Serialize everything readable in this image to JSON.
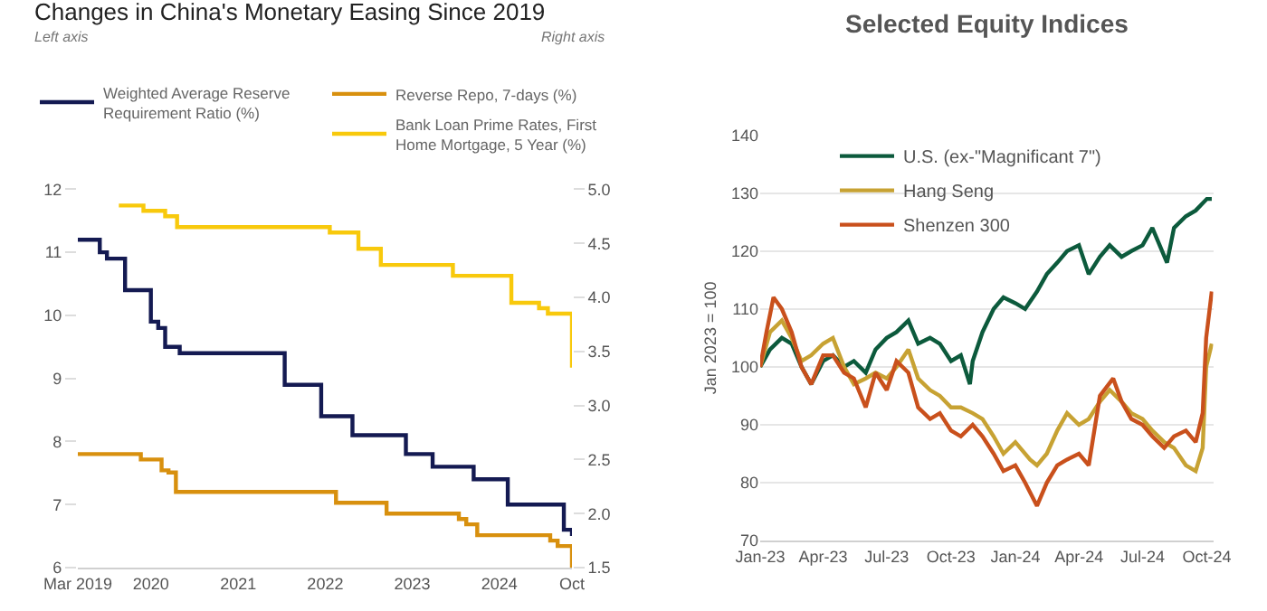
{
  "chart_data": [
    {
      "type": "step",
      "title": "Changes in China's Monetary Easing Since 2019",
      "annotations": [
        "Left axis",
        "Right axis"
      ],
      "xlim": [
        "2019-03-01",
        "2024-10-31"
      ],
      "xticks": [
        {
          "value": "2019-03-01",
          "label": "Mar 2019"
        },
        {
          "value": "2020-01-01",
          "label": "2020"
        },
        {
          "value": "2021-01-01",
          "label": "2021"
        },
        {
          "value": "2022-01-01",
          "label": "2022"
        },
        {
          "value": "2023-01-01",
          "label": "2023"
        },
        {
          "value": "2024-01-01",
          "label": "2024"
        },
        {
          "value": "2024-10-31",
          "label": "Oct"
        }
      ],
      "ylim": [
        6,
        12
      ],
      "yticks": [
        6,
        7,
        8,
        9,
        10,
        11,
        12
      ],
      "y2lim": [
        1.5,
        5.0
      ],
      "y2ticks": [
        1.5,
        {
          "value": 2,
          "label": "2.0"
        },
        2.5,
        {
          "value": 3,
          "label": "3.0"
        },
        3.5,
        {
          "value": 4,
          "label": "4.0"
        },
        4.5,
        {
          "value": 5,
          "label": "5.0"
        }
      ],
      "legend": "top",
      "grid": false,
      "series": [
        {
          "name": "Weighted Average Reserve Requirement Ratio (%)",
          "color": "#141a52",
          "x": [
            "2019-03-01",
            "2019-04-15",
            "2019-06-01",
            "2019-07-01",
            "2019-08-01",
            "2019-09-15",
            "2020-01-01",
            "2020-02-01",
            "2020-03-01",
            "2020-05-01",
            "2021-07-15",
            "2021-12-15",
            "2022-04-25",
            "2022-12-05",
            "2023-03-27",
            "2023-09-15",
            "2024-02-05",
            "2024-09-27",
            "2024-10-31"
          ],
          "values": [
            11.2,
            11.2,
            11.0,
            10.9,
            10.9,
            10.4,
            9.9,
            9.8,
            9.5,
            9.4,
            8.9,
            8.4,
            8.1,
            7.8,
            7.6,
            7.4,
            7.0,
            6.6,
            6.5
          ]
        },
        {
          "name": "Reverse Repo, 7-days (%)",
          "color": "#d8900e",
          "axis": "y2",
          "x": [
            "2019-03-01",
            "2019-10-01",
            "2019-11-20",
            "2020-01-01",
            "2020-02-15",
            "2020-03-15",
            "2020-04-15",
            "2021-12-31",
            "2022-02-15",
            "2022-08-01",
            "2022-09-15",
            "2023-06-01",
            "2023-07-15",
            "2023-08-15",
            "2023-09-30",
            "2024-07-01",
            "2024-08-01",
            "2024-09-01",
            "2024-09-27",
            "2024-10-31"
          ],
          "values": [
            2.55,
            2.55,
            2.5,
            2.5,
            2.4,
            2.38,
            2.2,
            2.2,
            2.1,
            2.1,
            2.0,
            2.0,
            1.95,
            1.9,
            1.8,
            1.8,
            1.75,
            1.7,
            1.7,
            1.5
          ]
        },
        {
          "name": "Bank Loan Prime Rates, First Home Mortgage, 5 Year (%)",
          "color": "#f8c90c",
          "axis": "y2",
          "x": [
            "2019-08-20",
            "2019-11-01",
            "2019-12-01",
            "2020-01-15",
            "2020-03-01",
            "2020-04-20",
            "2021-12-20",
            "2022-01-20",
            "2022-04-01",
            "2022-05-20",
            "2022-08-22",
            "2023-06-20",
            "2024-02-20",
            "2024-06-15",
            "2024-07-22",
            "2024-09-20",
            "2024-10-31"
          ],
          "values": [
            4.85,
            4.85,
            4.8,
            4.8,
            4.75,
            4.65,
            4.65,
            4.6,
            4.6,
            4.45,
            4.3,
            4.2,
            3.95,
            3.9,
            3.85,
            3.85,
            3.35
          ]
        }
      ]
    },
    {
      "type": "line",
      "title": "Selected Equity Indices",
      "ylabel": "Jan 2023 = 100",
      "xlim": [
        "2023-01-01",
        "2024-10-10"
      ],
      "xticks": [
        {
          "value": "2023-01-01",
          "label": "Jan-23"
        },
        {
          "value": "2023-04-01",
          "label": "Apr-23"
        },
        {
          "value": "2023-07-01",
          "label": "Jul-23"
        },
        {
          "value": "2023-10-01",
          "label": "Oct-23"
        },
        {
          "value": "2024-01-01",
          "label": "Jan-24"
        },
        {
          "value": "2024-04-01",
          "label": "Apr-24"
        },
        {
          "value": "2024-07-01",
          "label": "Jul-24"
        },
        {
          "value": "2024-10-01",
          "label": "Oct-24"
        }
      ],
      "ylim": [
        70,
        140
      ],
      "yticks": [
        70,
        80,
        90,
        100,
        110,
        120,
        130,
        140
      ],
      "legend": "top left",
      "grid": "y",
      "series": [
        {
          "name": "U.S. (ex-\"Magnificant 7\")",
          "color": "#0c5a3c",
          "x": [
            "2023-01-01",
            "2023-01-15",
            "2023-02-01",
            "2023-02-15",
            "2023-03-01",
            "2023-03-15",
            "2023-04-01",
            "2023-04-15",
            "2023-05-01",
            "2023-05-15",
            "2023-06-01",
            "2023-06-15",
            "2023-07-01",
            "2023-07-15",
            "2023-08-01",
            "2023-08-15",
            "2023-09-01",
            "2023-09-15",
            "2023-10-01",
            "2023-10-15",
            "2023-10-28",
            "2023-11-01",
            "2023-11-15",
            "2023-12-01",
            "2023-12-15",
            "2024-01-01",
            "2024-01-15",
            "2024-02-01",
            "2024-02-15",
            "2024-03-01",
            "2024-03-15",
            "2024-04-01",
            "2024-04-15",
            "2024-05-01",
            "2024-05-15",
            "2024-06-01",
            "2024-06-15",
            "2024-07-01",
            "2024-07-15",
            "2024-08-05",
            "2024-08-15",
            "2024-09-01",
            "2024-09-15",
            "2024-10-01",
            "2024-10-08"
          ],
          "values": [
            100,
            103,
            105,
            104,
            100,
            97,
            101,
            102,
            100,
            101,
            99,
            103,
            105,
            106,
            108,
            104,
            105,
            104,
            101,
            102,
            97,
            101,
            106,
            110,
            112,
            111,
            110,
            113,
            116,
            118,
            120,
            121,
            116,
            119,
            121,
            119,
            120,
            121,
            124,
            118,
            124,
            126,
            127,
            129,
            129
          ]
        },
        {
          "name": "Hang Seng",
          "color": "#c7a233",
          "x": [
            "2023-01-01",
            "2023-01-15",
            "2023-02-01",
            "2023-02-15",
            "2023-03-01",
            "2023-03-15",
            "2023-04-01",
            "2023-04-15",
            "2023-05-01",
            "2023-05-15",
            "2023-06-01",
            "2023-06-15",
            "2023-07-01",
            "2023-07-15",
            "2023-08-01",
            "2023-08-15",
            "2023-09-01",
            "2023-09-15",
            "2023-10-01",
            "2023-10-15",
            "2023-11-01",
            "2023-11-15",
            "2023-12-01",
            "2023-12-15",
            "2024-01-01",
            "2024-01-22",
            "2024-02-01",
            "2024-02-15",
            "2024-03-01",
            "2024-03-15",
            "2024-04-01",
            "2024-04-15",
            "2024-05-01",
            "2024-05-15",
            "2024-06-01",
            "2024-06-15",
            "2024-07-01",
            "2024-07-15",
            "2024-08-01",
            "2024-08-15",
            "2024-09-01",
            "2024-09-15",
            "2024-09-25",
            "2024-09-30",
            "2024-10-08"
          ],
          "values": [
            100,
            106,
            108,
            105,
            101,
            102,
            104,
            105,
            100,
            97,
            98,
            99,
            98,
            100,
            103,
            98,
            96,
            95,
            93,
            93,
            92,
            91,
            88,
            85,
            87,
            84,
            83,
            85,
            89,
            92,
            90,
            91,
            94,
            96,
            94,
            92,
            91,
            89,
            87,
            86,
            83,
            82,
            86,
            100,
            104
          ]
        },
        {
          "name": "Shenzen 300",
          "color": "#c9501c",
          "x": [
            "2023-01-01",
            "2023-01-10",
            "2023-01-20",
            "2023-02-01",
            "2023-02-15",
            "2023-03-01",
            "2023-03-15",
            "2023-04-01",
            "2023-04-15",
            "2023-05-01",
            "2023-05-15",
            "2023-06-01",
            "2023-06-15",
            "2023-07-01",
            "2023-07-15",
            "2023-08-01",
            "2023-08-15",
            "2023-09-01",
            "2023-09-15",
            "2023-10-01",
            "2023-10-15",
            "2023-11-01",
            "2023-11-15",
            "2023-12-01",
            "2023-12-15",
            "2024-01-01",
            "2024-01-15",
            "2024-02-01",
            "2024-02-15",
            "2024-03-01",
            "2024-03-15",
            "2024-04-01",
            "2024-04-15",
            "2024-05-01",
            "2024-05-20",
            "2024-06-01",
            "2024-06-15",
            "2024-07-01",
            "2024-07-15",
            "2024-08-01",
            "2024-08-15",
            "2024-09-01",
            "2024-09-15",
            "2024-09-25",
            "2024-09-30",
            "2024-10-08"
          ],
          "values": [
            100,
            106,
            112,
            110,
            106,
            100,
            97,
            102,
            102,
            99,
            98,
            93,
            99,
            96,
            101,
            99,
            93,
            91,
            92,
            89,
            88,
            90,
            88,
            85,
            82,
            83,
            80,
            76,
            80,
            83,
            84,
            85,
            83,
            95,
            98,
            94,
            91,
            90,
            88,
            86,
            88,
            89,
            87,
            92,
            105,
            113
          ]
        }
      ]
    }
  ]
}
